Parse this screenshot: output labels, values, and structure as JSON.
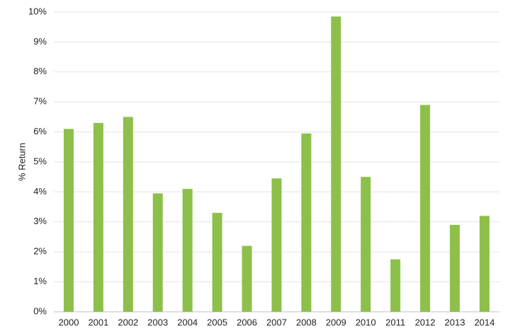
{
  "chart_data": {
    "type": "bar",
    "y_label": "% Return",
    "categories": [
      "2000",
      "2001",
      "2002",
      "2003",
      "2004",
      "2005",
      "2006",
      "2007",
      "2008",
      "2009",
      "2010",
      "2011",
      "2012",
      "2013",
      "2014"
    ],
    "values": [
      6.1,
      6.3,
      6.5,
      3.95,
      4.1,
      3.3,
      2.2,
      4.45,
      5.95,
      9.85,
      4.5,
      1.75,
      6.9,
      2.9,
      3.2
    ],
    "color": "#8dc04a",
    "ylim": [
      0,
      10
    ],
    "yticks": [
      {
        "value": 0,
        "label": "0%"
      },
      {
        "value": 1,
        "label": "1%"
      },
      {
        "value": 2,
        "label": "2%"
      },
      {
        "value": 3,
        "label": "3%"
      },
      {
        "value": 4,
        "label": "4%"
      },
      {
        "value": 5,
        "label": "5%"
      },
      {
        "value": 6,
        "label": "6%"
      },
      {
        "value": 7,
        "label": "7%"
      },
      {
        "value": 8,
        "label": "8%"
      },
      {
        "value": 9,
        "label": "9%"
      },
      {
        "value": 10,
        "label": "10%"
      }
    ],
    "grid": true
  }
}
